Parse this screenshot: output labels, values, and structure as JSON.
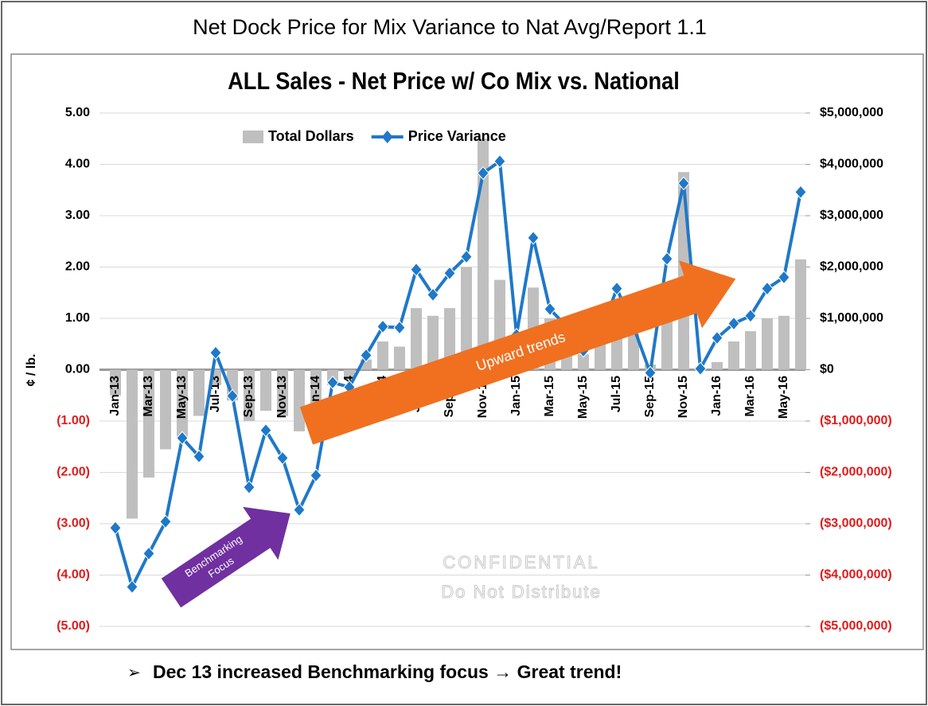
{
  "chart_data": {
    "type": "bar-line",
    "page_title": "Net Dock Price for Mix Variance to Nat Avg/Report 1.1",
    "title": "ALL Sales - Net Price w/ Co Mix vs. National",
    "ylabel": "¢ / lb.",
    "footer": "Dec 13 increased Benchmarking focus → Great trend!",
    "annotations": {
      "upward": "Upward trends",
      "benchmark": [
        "Benchmarking",
        "Focus"
      ],
      "watermark": [
        "CONFIDENTIAL",
        "Do Not Distribute"
      ]
    },
    "legend": "top",
    "grid": true,
    "negative_color": "#e01b1b",
    "categories": [
      "Jan-13",
      null,
      "Mar-13",
      null,
      "May-13",
      null,
      "Jul-13",
      null,
      "Sep-13",
      null,
      "Nov-13",
      null,
      "Jan-14",
      null,
      "Mar-14",
      null,
      "May-14",
      null,
      "Jul-14",
      null,
      "Sep-14",
      null,
      "Nov-14",
      null,
      "Jan-15",
      null,
      "Mar-15",
      null,
      "May-15",
      null,
      "Jul-15",
      null,
      "Sep-15",
      null,
      "Nov-15",
      null,
      "Jan-16",
      null,
      "Mar-16",
      null,
      "May-16",
      null
    ],
    "series": [
      {
        "name": "Total Dollars",
        "type": "bar",
        "axis": "y2",
        "color": "#bfbfbf",
        "values": [
          -500000,
          -2900000,
          -2100000,
          -1550000,
          -1300000,
          -900000,
          -300000,
          -600000,
          -1000000,
          -800000,
          -900000,
          -1200000,
          -800000,
          -300000,
          -200000,
          200000,
          550000,
          450000,
          1200000,
          1050000,
          1200000,
          2000000,
          4500000,
          1750000,
          700000,
          1600000,
          1000000,
          600000,
          300000,
          600000,
          700000,
          700000,
          100000,
          1000000,
          3850000,
          50000,
          150000,
          550000,
          750000,
          1000000,
          1050000,
          2150000
        ]
      },
      {
        "name": "Price Variance",
        "type": "line",
        "axis": "y",
        "color": "#1f78c8",
        "values": [
          -3.08,
          -4.23,
          -3.58,
          -2.96,
          -1.33,
          -1.69,
          0.33,
          -0.51,
          -2.29,
          -1.18,
          -1.72,
          -2.73,
          -2.06,
          -0.25,
          -0.34,
          0.28,
          0.84,
          0.82,
          1.95,
          1.46,
          1.88,
          2.2,
          3.83,
          4.06,
          0.68,
          2.57,
          1.18,
          0.84,
          0.37,
          0.68,
          1.58,
          0.84,
          -0.06,
          2.16,
          3.63,
          0.02,
          0.62,
          0.9,
          1.05,
          1.58,
          1.8,
          3.46
        ]
      }
    ],
    "ylim": [
      -5,
      5
    ],
    "yticks": [
      {
        "value": -5,
        "label": "(5.00)"
      },
      {
        "value": -4,
        "label": "(4.00)"
      },
      {
        "value": -3,
        "label": "(3.00)"
      },
      {
        "value": -2,
        "label": "(2.00)"
      },
      {
        "value": -1,
        "label": "(1.00)"
      },
      {
        "value": 0,
        "label": "0.00"
      },
      {
        "value": 1,
        "label": "1.00"
      },
      {
        "value": 2,
        "label": "2.00"
      },
      {
        "value": 3,
        "label": "3.00"
      },
      {
        "value": 4,
        "label": "4.00"
      },
      {
        "value": 5,
        "label": "5.00"
      }
    ],
    "y2lim": [
      -5000000,
      5000000
    ],
    "y2ticks": [
      {
        "value": -5000000,
        "label": "($5,000,000)"
      },
      {
        "value": -4000000,
        "label": "($4,000,000)"
      },
      {
        "value": -3000000,
        "label": "($3,000,000)"
      },
      {
        "value": -2000000,
        "label": "($2,000,000)"
      },
      {
        "value": -1000000,
        "label": "($1,000,000)"
      },
      {
        "value": 0,
        "label": "$0"
      },
      {
        "value": 1000000,
        "label": "$1,000,000"
      },
      {
        "value": 2000000,
        "label": "$2,000,000"
      },
      {
        "value": 3000000,
        "label": "$3,000,000"
      },
      {
        "value": 4000000,
        "label": "$4,000,000"
      },
      {
        "value": 5000000,
        "label": "$5,000,000"
      }
    ]
  }
}
